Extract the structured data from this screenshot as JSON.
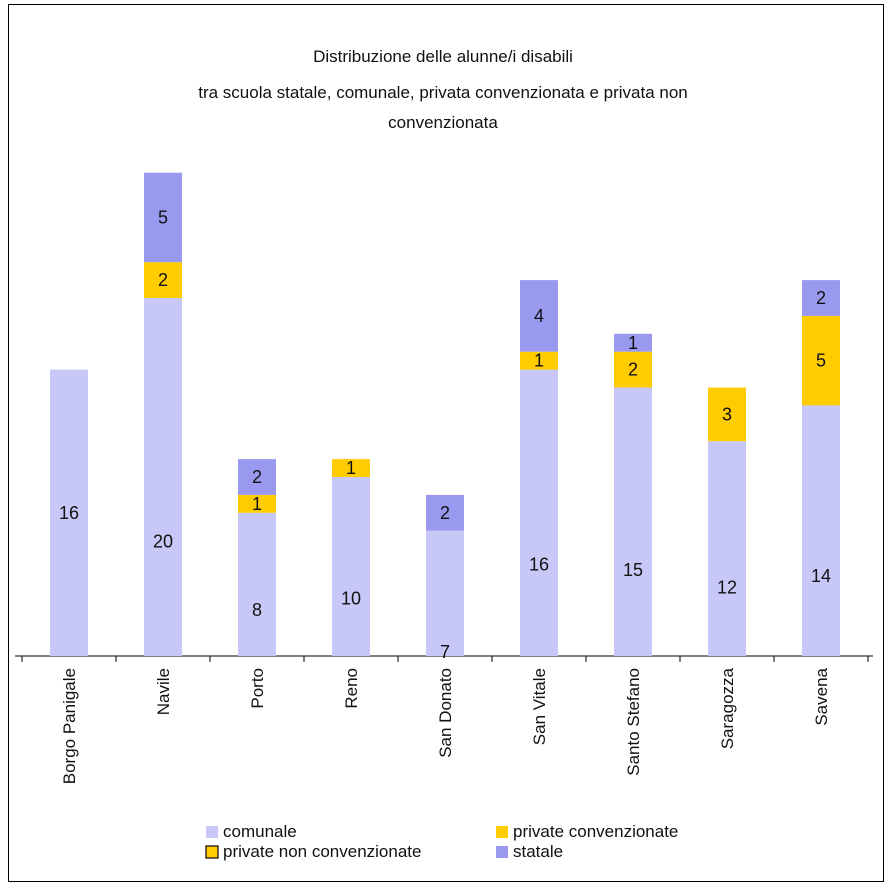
{
  "chart_data": {
    "type": "bar",
    "stacked": true,
    "title": "Distribuzione delle alunne/i disabili tra scuola statale, comunale, privata convenzionata e privata non convenzionata",
    "title_lines": [
      "Distribuzione delle alunne/i disabili",
      "tra scuola statale, comunale, privata convenzionata e privata non",
      "convenzionata"
    ],
    "xlabel": "",
    "ylabel": "",
    "ylim": [
      0,
      27
    ],
    "grid": false,
    "legend_position": "bottom",
    "categories": [
      "Borgo Panigale",
      "Navile",
      "Porto",
      "Reno",
      "San Donato",
      "San Vitale",
      "Santo Stefano",
      "Saragozza",
      "Savena"
    ],
    "series": [
      {
        "name": "comunale",
        "color": "#c8c8f8",
        "values": [
          16,
          20,
          8,
          10,
          7,
          16,
          15,
          12,
          14
        ]
      },
      {
        "name": "private non convenzionata",
        "color": "#ffcc00",
        "values": [
          0,
          0,
          0,
          0,
          0,
          0,
          0,
          0,
          0
        ]
      },
      {
        "name": "private convenzionate",
        "color": "#ffcc00",
        "values": [
          0,
          2,
          1,
          1,
          0,
          1,
          2,
          3,
          5
        ]
      },
      {
        "name": "statale",
        "color": "#9999f0",
        "values": [
          0,
          5,
          2,
          0,
          2,
          4,
          1,
          0,
          2
        ]
      }
    ],
    "legend": [
      {
        "name": "comunale",
        "color": "#c8c8f8",
        "outlined": false
      },
      {
        "name": "private convenzionate",
        "color": "#ffcc00",
        "outlined": false
      },
      {
        "name": "private non convenzionate",
        "color": "#ffcc00",
        "outlined": true
      },
      {
        "name": "statale",
        "color": "#9999f0",
        "outlined": false
      }
    ]
  }
}
